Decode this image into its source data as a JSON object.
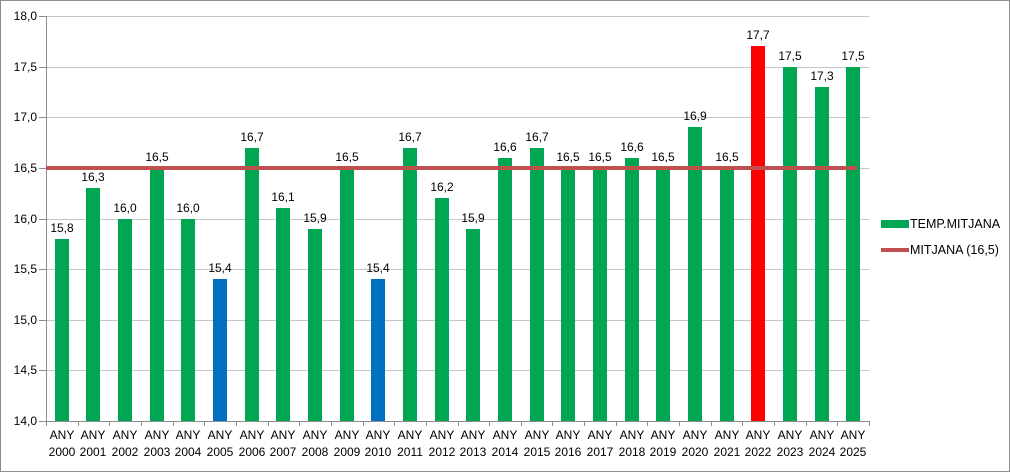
{
  "chart_data": {
    "type": "bar",
    "title": "",
    "xlabel": "",
    "ylabel": "",
    "category_prefix": "ANY",
    "categories": [
      "2000",
      "2001",
      "2002",
      "2003",
      "2004",
      "2005",
      "2006",
      "2007",
      "2008",
      "2009",
      "2010",
      "2011",
      "2012",
      "2013",
      "2014",
      "2015",
      "2016",
      "2017",
      "2018",
      "2019",
      "2020",
      "2021",
      "2022",
      "2023",
      "2024",
      "2025"
    ],
    "series": [
      {
        "name": "TEMP.MITJANA",
        "values": [
          15.8,
          16.3,
          16.0,
          16.5,
          16.0,
          15.4,
          16.7,
          16.1,
          15.9,
          16.5,
          15.4,
          16.7,
          16.2,
          15.9,
          16.6,
          16.7,
          16.5,
          16.5,
          16.6,
          16.5,
          16.9,
          16.5,
          17.7,
          17.5,
          17.3,
          17.5
        ],
        "value_labels": [
          "15,8",
          "16,3",
          "16,0",
          "16,5",
          "16,0",
          "15,4",
          "16,7",
          "16,1",
          "15,9",
          "16,5",
          "15,4",
          "16,7",
          "16,2",
          "15,9",
          "16,6",
          "16,7",
          "16,5",
          "16,5",
          "16,6",
          "16,5",
          "16,9",
          "16,5",
          "17,7",
          "17,5",
          "17,3",
          "17,5"
        ],
        "bar_color_keys": [
          "green",
          "green",
          "green",
          "green",
          "green",
          "blue",
          "green",
          "green",
          "green",
          "green",
          "blue",
          "green",
          "green",
          "green",
          "green",
          "green",
          "green",
          "green",
          "green",
          "green",
          "green",
          "green",
          "red",
          "green",
          "green",
          "green"
        ]
      }
    ],
    "mean_line": {
      "name": "MITJANA (16,5)",
      "value": 16.5
    },
    "ylim": [
      14.0,
      18.0
    ],
    "ytick_step": 0.5,
    "ytick_labels": [
      "14,0",
      "14,5",
      "15,0",
      "15,5",
      "16,0",
      "16,5",
      "17,0",
      "17,5",
      "18,0"
    ],
    "grid": true,
    "legend_position": "right",
    "legend": [
      {
        "label": "TEMP.MITJANA",
        "marker": "swatch",
        "color_key": "green"
      },
      {
        "label": "MITJANA (16,5)",
        "marker": "line",
        "color_key": "mean"
      }
    ],
    "palette": {
      "green": "#00A651",
      "blue": "#0070C0",
      "red": "#FF0000",
      "mean": "#C0504D"
    },
    "colors": {
      "gridline": "#C6C6C6",
      "axis": "#8C8C8C",
      "border": "#8C8C8C",
      "background": "#FFFFFF",
      "text": "#000000"
    }
  }
}
